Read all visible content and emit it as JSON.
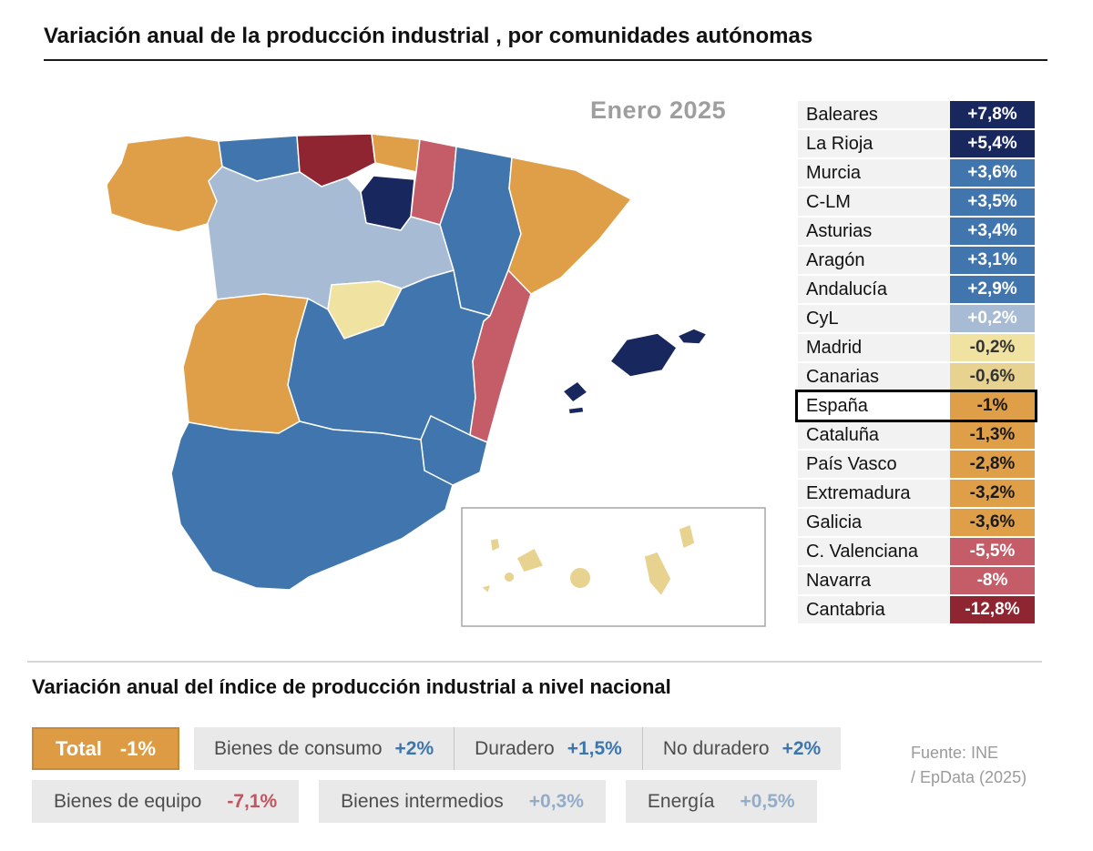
{
  "source": {
    "line1": "Fuente: INE",
    "line2": "/ EpData (2025)"
  },
  "chart_data": [
    {
      "type": "choropleth",
      "title": "Variación anual de la producción industrial , por comunidades autónomas",
      "period": "Enero 2025",
      "unit": "% variación anual",
      "legend_position": "right",
      "regions": [
        {
          "id": "baleares",
          "name": "Baleares",
          "value": "+7,8%",
          "numeric": 7.8,
          "color": "#19275f",
          "text_color": "#ffffff"
        },
        {
          "id": "larioja",
          "name": "La Rioja",
          "value": "+5,4%",
          "numeric": 5.4,
          "color": "#19275f",
          "text_color": "#ffffff"
        },
        {
          "id": "murcia",
          "name": "Murcia",
          "value": "+3,6%",
          "numeric": 3.6,
          "color": "#4076ad",
          "text_color": "#ffffff"
        },
        {
          "id": "clm",
          "name": "C-LM",
          "value": "+3,5%",
          "numeric": 3.5,
          "color": "#4076ad",
          "text_color": "#ffffff"
        },
        {
          "id": "asturias",
          "name": "Asturias",
          "value": "+3,4%",
          "numeric": 3.4,
          "color": "#4076ad",
          "text_color": "#ffffff"
        },
        {
          "id": "aragon",
          "name": "Aragón",
          "value": "+3,1%",
          "numeric": 3.1,
          "color": "#4076ad",
          "text_color": "#ffffff"
        },
        {
          "id": "andalucia",
          "name": "Andalucía",
          "value": "+2,9%",
          "numeric": 2.9,
          "color": "#4076ad",
          "text_color": "#ffffff"
        },
        {
          "id": "cyl",
          "name": "CyL",
          "value": "+0,2%",
          "numeric": 0.2,
          "color": "#a7bbd4",
          "text_color": "#ffffff"
        },
        {
          "id": "madrid",
          "name": "Madrid",
          "value": "-0,2%",
          "numeric": -0.2,
          "color": "#f0e2a0",
          "text_color": "#333333"
        },
        {
          "id": "canarias",
          "name": "Canarias",
          "value": "-0,6%",
          "numeric": -0.6,
          "color": "#e7d28f",
          "text_color": "#333333"
        },
        {
          "id": "espana",
          "name": "España",
          "value": "-1%",
          "numeric": -1.0,
          "color": "#df9f49",
          "text_color": "#1a1a1a",
          "highlight": true
        },
        {
          "id": "cataluna",
          "name": "Cataluña",
          "value": "-1,3%",
          "numeric": -1.3,
          "color": "#df9f49",
          "text_color": "#1a1a1a"
        },
        {
          "id": "paisvasco",
          "name": "País Vasco",
          "value": "-2,8%",
          "numeric": -2.8,
          "color": "#df9f49",
          "text_color": "#1a1a1a"
        },
        {
          "id": "extremadura",
          "name": "Extremadura",
          "value": "-3,2%",
          "numeric": -3.2,
          "color": "#df9f49",
          "text_color": "#1a1a1a"
        },
        {
          "id": "galicia",
          "name": "Galicia",
          "value": "-3,6%",
          "numeric": -3.6,
          "color": "#df9f49",
          "text_color": "#1a1a1a"
        },
        {
          "id": "valenciana",
          "name": "C. Valenciana",
          "value": "-5,5%",
          "numeric": -5.5,
          "color": "#c45d68",
          "text_color": "#ffffff"
        },
        {
          "id": "navarra",
          "name": "Navarra",
          "value": "-8%",
          "numeric": -8.0,
          "color": "#c45d68",
          "text_color": "#ffffff"
        },
        {
          "id": "cantabria",
          "name": "Cantabria",
          "value": "-12,8%",
          "numeric": -12.8,
          "color": "#8e2531",
          "text_color": "#ffffff"
        }
      ]
    },
    {
      "type": "badges",
      "title": "Variación anual del índice de producción industrial a nivel nacional",
      "total": {
        "label": "Total",
        "value": "-1%",
        "numeric": -1.0,
        "bg": "#dd9c43",
        "text_color": "#ffffff"
      },
      "row1": [
        {
          "label": "Bienes de consumo",
          "value": "+2%",
          "numeric": 2.0,
          "value_color": "#3d76ad"
        },
        {
          "label": "Duradero",
          "value": "+1,5%",
          "numeric": 1.5,
          "value_color": "#3d76ad"
        },
        {
          "label": "No duradero",
          "value": "+2%",
          "numeric": 2.0,
          "value_color": "#3d76ad"
        }
      ],
      "row2": [
        {
          "label": "Bienes de equipo",
          "value": "-7,1%",
          "numeric": -7.1,
          "value_color": "#c0545f"
        },
        {
          "label": "Bienes intermedios",
          "value": "+0,3%",
          "numeric": 0.3,
          "value_color": "#93acc8"
        },
        {
          "label": "Energía",
          "value": "+0,5%",
          "numeric": 0.5,
          "value_color": "#93acc8"
        }
      ]
    }
  ]
}
